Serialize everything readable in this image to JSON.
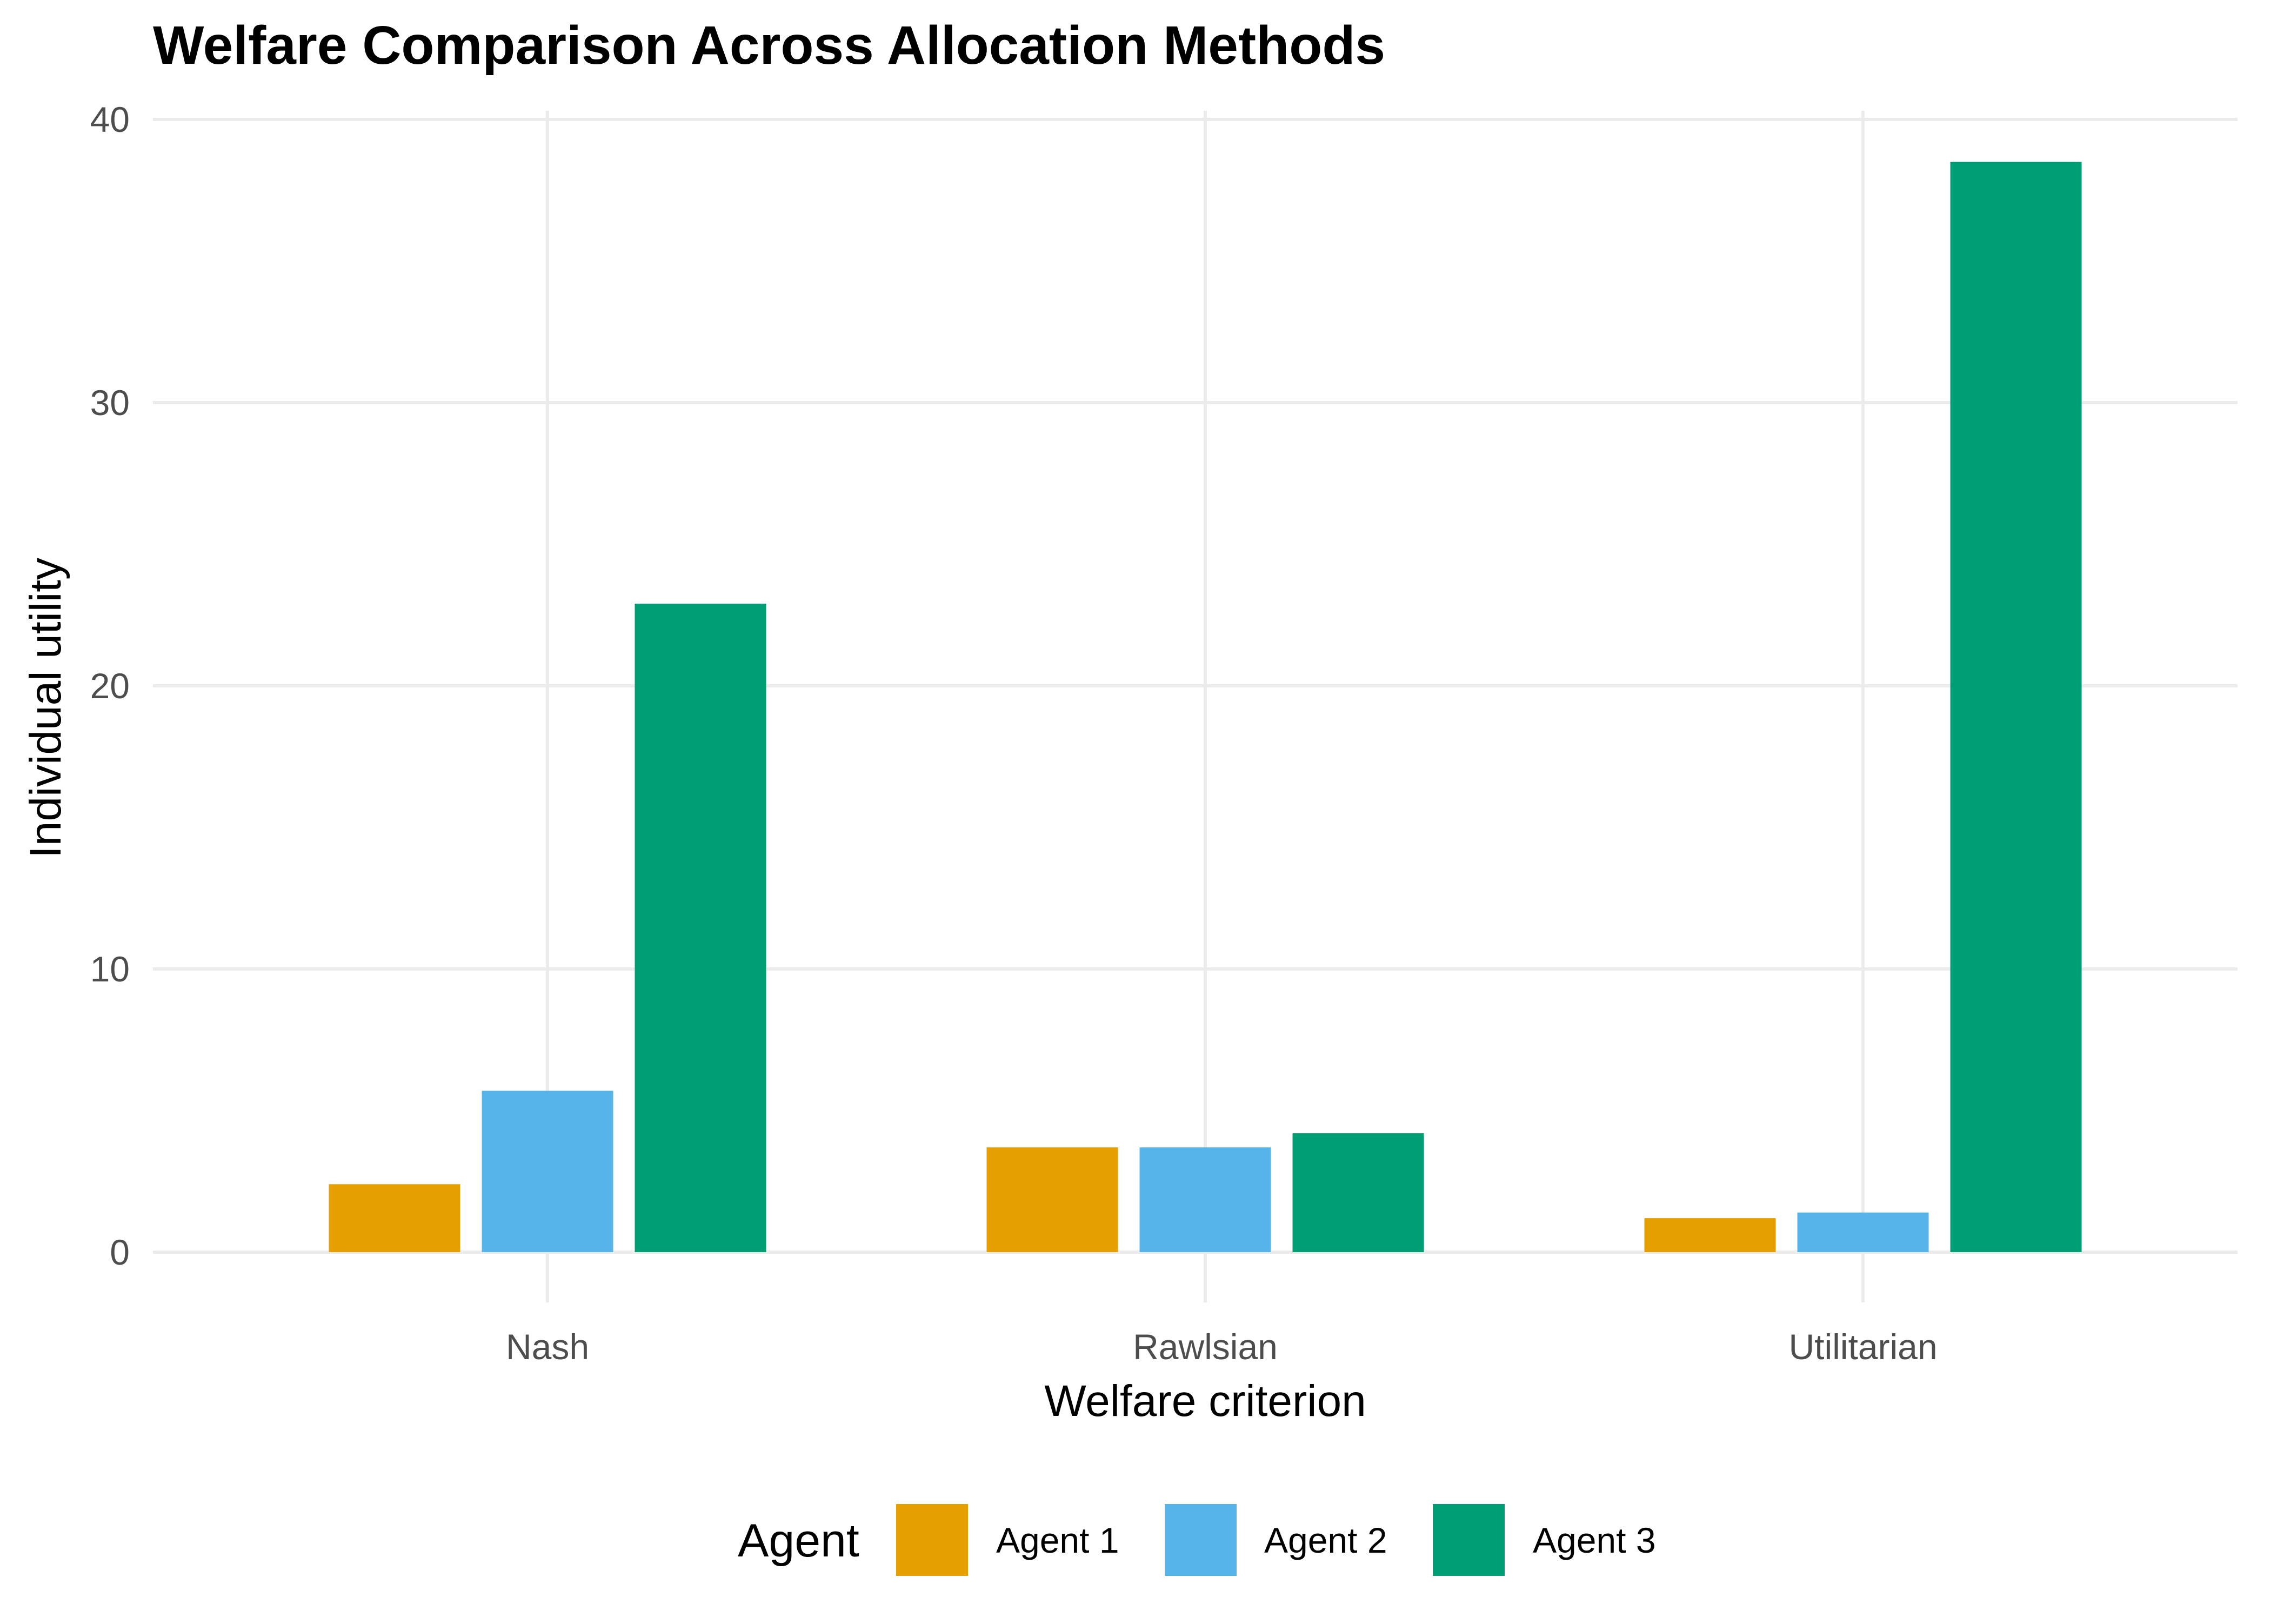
{
  "chart_data": {
    "type": "bar",
    "title": "Welfare Comparison Across Allocation Methods",
    "xlabel": "Welfare criterion",
    "ylabel": "Individual utility",
    "categories": [
      "Nash",
      "Rawlsian",
      "Utilitarian"
    ],
    "series": [
      {
        "name": "Agent 1",
        "color": "#E69F00",
        "values": [
          2.4,
          3.7,
          1.2
        ]
      },
      {
        "name": "Agent 2",
        "color": "#56B4E9",
        "values": [
          5.7,
          3.7,
          1.4
        ]
      },
      {
        "name": "Agent 3",
        "color": "#009E73",
        "values": [
          22.9,
          4.2,
          38.5
        ]
      }
    ],
    "ylim": [
      0,
      40
    ],
    "yticks": [
      "0",
      "10",
      "20",
      "30",
      "40"
    ],
    "grid": true,
    "legend": {
      "title": "Agent",
      "placement": "bottom",
      "entries": [
        "Agent 1",
        "Agent 2",
        "Agent 3"
      ]
    }
  }
}
